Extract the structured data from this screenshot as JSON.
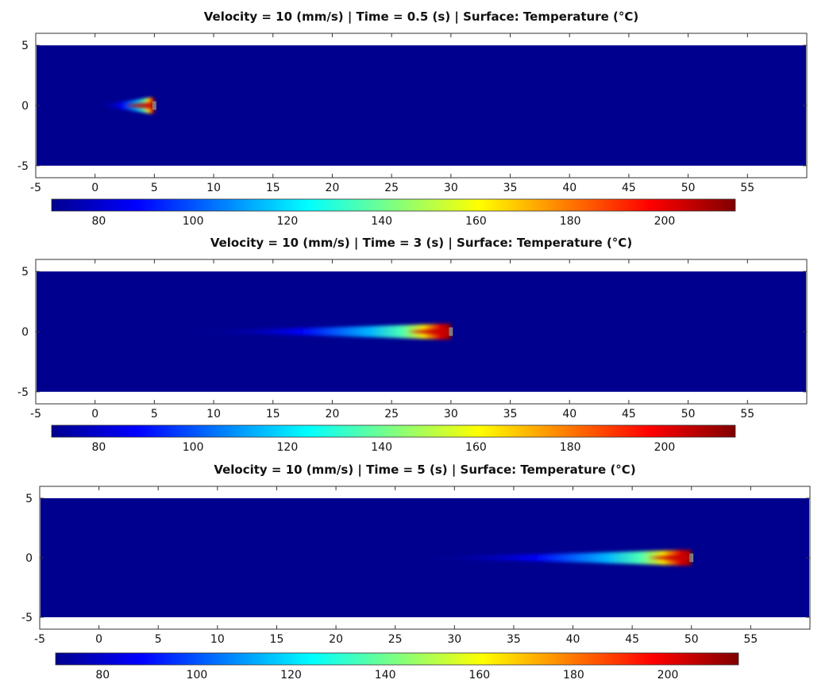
{
  "chart_data": [
    {
      "type": "heatmap",
      "title": "Velocity = 10 (mm/s) | Time = 0.5 (s) | Surface: Temperature (°C)",
      "xlabel": "",
      "ylabel": "",
      "xlim": [
        -5,
        60
      ],
      "ylim": [
        -6,
        6
      ],
      "domain": {
        "x": [
          -5,
          60
        ],
        "y": [
          -5,
          5
        ]
      },
      "x_ticks": [
        -5,
        0,
        5,
        10,
        15,
        20,
        25,
        30,
        35,
        40,
        45,
        50,
        55
      ],
      "y_ticks": [
        -5,
        0,
        5
      ],
      "background_temperature": 70,
      "heat_source": {
        "x": 5,
        "y": 0,
        "peak_temperature": 215
      },
      "tail_start_x": 0,
      "colorbar": {
        "min": 70,
        "max": 215,
        "ticks": [
          80,
          100,
          120,
          140,
          160,
          180,
          200
        ],
        "colormap": "jet"
      },
      "grid": false
    },
    {
      "type": "heatmap",
      "title": "Velocity = 10 (mm/s) | Time = 3 (s) | Surface: Temperature (°C)",
      "xlabel": "",
      "ylabel": "",
      "xlim": [
        -5,
        60
      ],
      "ylim": [
        -6,
        6
      ],
      "domain": {
        "x": [
          -5,
          60
        ],
        "y": [
          -5,
          5
        ]
      },
      "x_ticks": [
        -5,
        0,
        5,
        10,
        15,
        20,
        25,
        30,
        35,
        40,
        45,
        50,
        55
      ],
      "y_ticks": [
        -5,
        0,
        5
      ],
      "background_temperature": 70,
      "heat_source": {
        "x": 30,
        "y": 0,
        "peak_temperature": 215
      },
      "tail_start_x": 7,
      "colorbar": {
        "min": 70,
        "max": 215,
        "ticks": [
          80,
          100,
          120,
          140,
          160,
          180,
          200
        ],
        "colormap": "jet"
      },
      "grid": false
    },
    {
      "type": "heatmap",
      "title": "Velocity = 10 (mm/s) | Time = 5 (s) | Surface: Temperature (°C)",
      "xlabel": "",
      "ylabel": "",
      "xlim": [
        -5,
        60
      ],
      "ylim": [
        -6,
        6
      ],
      "domain": {
        "x": [
          -5,
          60
        ],
        "y": [
          -5,
          5
        ]
      },
      "x_ticks": [
        -5,
        0,
        5,
        10,
        15,
        20,
        25,
        30,
        35,
        40,
        45,
        50,
        55
      ],
      "y_ticks": [
        -5,
        0,
        5
      ],
      "background_temperature": 70,
      "heat_source": {
        "x": 50,
        "y": 0,
        "peak_temperature": 215
      },
      "tail_start_x": 26,
      "colorbar": {
        "min": 70,
        "max": 215,
        "ticks": [
          80,
          100,
          120,
          140,
          160,
          180,
          200
        ],
        "colormap": "jet"
      },
      "grid": false
    }
  ]
}
